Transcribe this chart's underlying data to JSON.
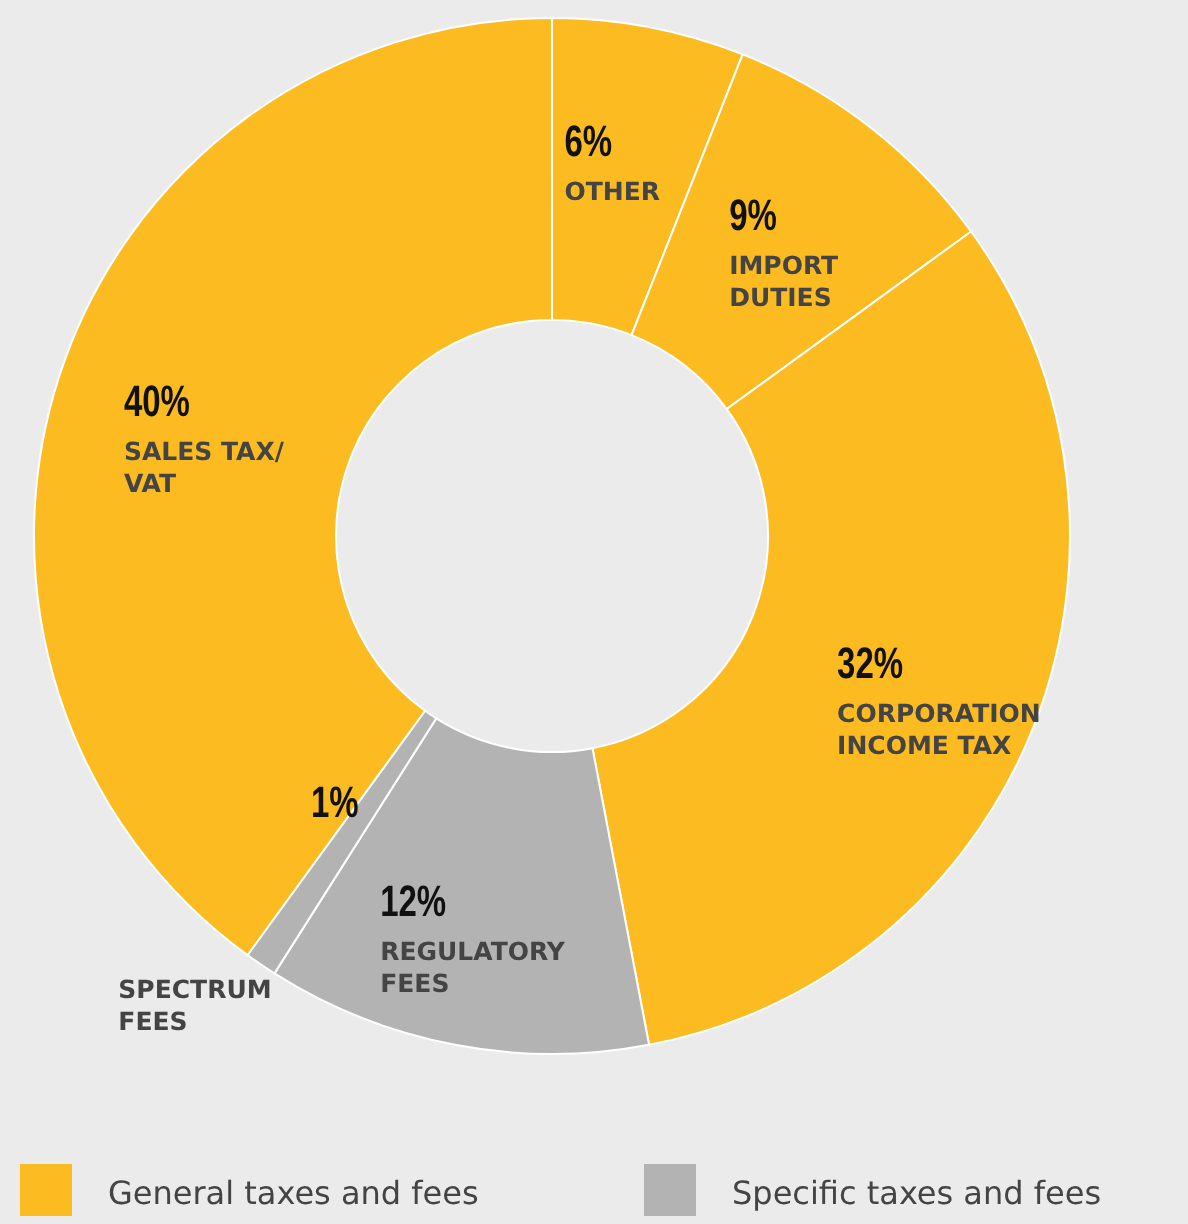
{
  "chart_data": {
    "type": "donut",
    "categories": [
      "OTHER",
      "IMPORT\nDUTIES",
      "CORPORATION\nINCOME TAX",
      "REGULATORY\nFEES",
      "SPECTRUM\nFEES",
      "SALES TAX/\nVAT"
    ],
    "values": [
      6,
      9,
      32,
      12,
      1,
      40
    ],
    "value_labels": [
      "6%",
      "9%",
      "32%",
      "12%",
      "1%",
      "40%"
    ],
    "colors": [
      "#fbbb21",
      "#fbbb21",
      "#fbbb21",
      "#b3b3b3",
      "#b3b3b3",
      "#fbbb21"
    ],
    "annotations": [
      "General taxes and fees",
      "Specific taxes and fees"
    ]
  }
}
